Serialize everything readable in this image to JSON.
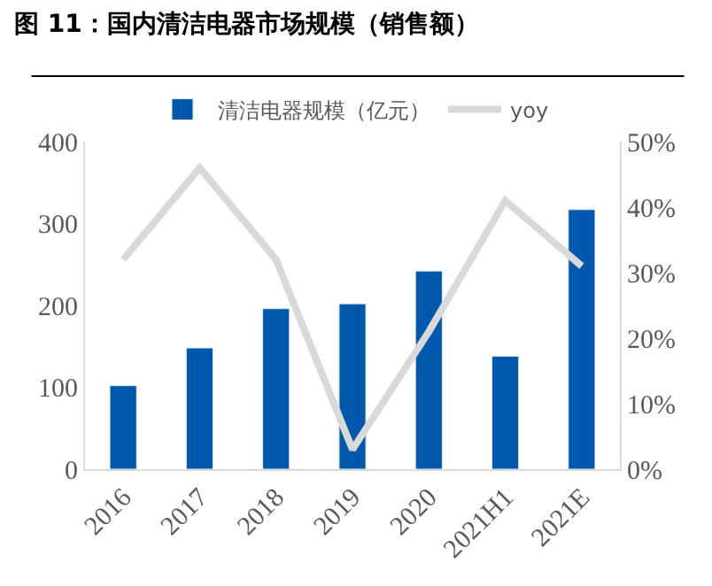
{
  "chart_data": {
    "type": "bar",
    "title": "图 11：国内清洁电器市场规模（销售额）",
    "categories": [
      "2016",
      "2017",
      "2018",
      "2019",
      "2020",
      "2021H1",
      "2021E"
    ],
    "series": [
      {
        "name": "清洁电器规模（亿元）",
        "color": "#0058ac",
        "values": [
          102,
          148,
          196,
          202,
          242,
          138,
          317
        ]
      },
      {
        "name": "yoy",
        "type": "line",
        "axis": "y2",
        "color": "#d9d9d9",
        "values": [
          32,
          46,
          32,
          3,
          21,
          41,
          31
        ]
      }
    ],
    "ylim": [
      0,
      400
    ],
    "yticks": [
      0,
      100,
      200,
      300,
      400
    ],
    "y2lim": [
      0,
      50
    ],
    "y2ticks": [
      {
        "value": 0,
        "label": "0%"
      },
      {
        "value": 10,
        "label": "10%"
      },
      {
        "value": 20,
        "label": "20%"
      },
      {
        "value": 30,
        "label": "30%"
      },
      {
        "value": 40,
        "label": "40%"
      },
      {
        "value": 50,
        "label": "50%"
      }
    ],
    "legend": "top",
    "marker": "none"
  }
}
